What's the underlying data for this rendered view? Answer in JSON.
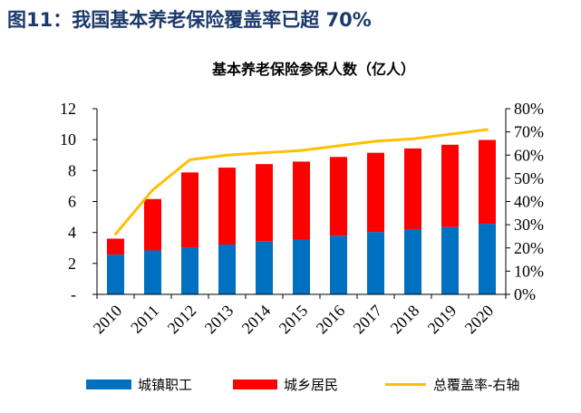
{
  "header": {
    "title": "图11：我国基本养老保险覆盖率已超 70%"
  },
  "chart_data": {
    "type": "bar",
    "stacked": true,
    "title": "基本养老保险参保人数（亿人）",
    "categories": [
      "2010",
      "2011",
      "2012",
      "2013",
      "2014",
      "2015",
      "2016",
      "2017",
      "2018",
      "2019",
      "2020"
    ],
    "y_left": {
      "range": [
        0,
        12
      ],
      "ticks": [
        0,
        2,
        4,
        6,
        8,
        10,
        12
      ],
      "tick_labels": [
        "-",
        "2",
        "4",
        "6",
        "8",
        "10",
        "12"
      ]
    },
    "y_right": {
      "range": [
        0,
        80
      ],
      "ticks": [
        0,
        10,
        20,
        30,
        40,
        50,
        60,
        70,
        80
      ],
      "tick_labels": [
        "0%",
        "10%",
        "20%",
        "30%",
        "40%",
        "50%",
        "60%",
        "70%",
        "80%"
      ]
    },
    "series": [
      {
        "name": "城镇职工",
        "type": "bar",
        "y_axis": "left",
        "color": "#0070C0",
        "values": [
          2.57,
          2.84,
          3.04,
          3.22,
          3.41,
          3.54,
          3.79,
          4.03,
          4.19,
          4.35,
          4.56
        ]
      },
      {
        "name": "城乡居民",
        "type": "bar",
        "y_axis": "left",
        "color": "#FF0000",
        "values": [
          1.03,
          3.32,
          4.84,
          4.97,
          5.01,
          5.04,
          5.09,
          5.12,
          5.24,
          5.32,
          5.42
        ]
      },
      {
        "name": "总覆盖率-右轴",
        "type": "line",
        "y_axis": "right",
        "color": "#FFC000",
        "values": [
          26,
          45,
          58,
          60,
          61,
          62,
          64,
          66,
          67,
          69,
          71
        ]
      }
    ],
    "legend": "bottom",
    "grid": false
  }
}
